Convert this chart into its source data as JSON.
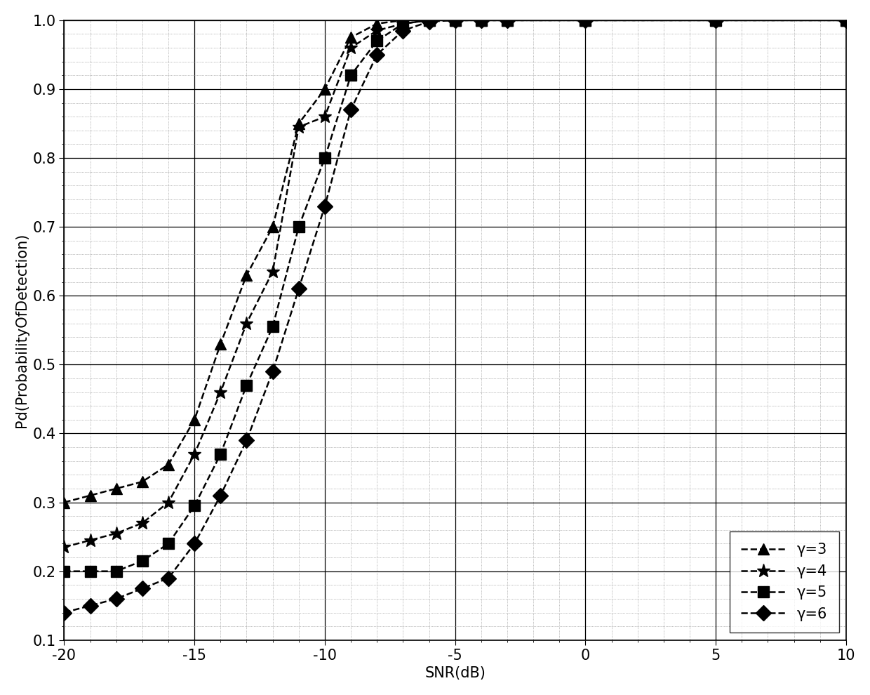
{
  "title": "",
  "xlabel": "SNR(dB)",
  "ylabel": "Pd(ProbabilityOfDetection)",
  "xlim": [
    -20,
    10
  ],
  "ylim": [
    0.1,
    1.0
  ],
  "yticks": [
    0.1,
    0.2,
    0.3,
    0.4,
    0.5,
    0.6,
    0.7,
    0.8,
    0.9,
    1.0
  ],
  "xticks": [
    -20,
    -15,
    -10,
    -5,
    0,
    5,
    10
  ],
  "series": [
    {
      "label": "γ=3",
      "marker": "^",
      "x": [
        -20,
        -19,
        -18,
        -17,
        -16,
        -15,
        -14,
        -13,
        -12,
        -11,
        -10,
        -9,
        -8,
        -7,
        -6,
        -5,
        -4,
        -3,
        0,
        5,
        10
      ],
      "y": [
        0.3,
        0.31,
        0.32,
        0.33,
        0.355,
        0.42,
        0.53,
        0.63,
        0.7,
        0.85,
        0.9,
        0.975,
        0.995,
        1.0,
        1.0,
        1.0,
        1.0,
        1.0,
        1.0,
        1.0,
        1.0
      ]
    },
    {
      "label": "γ=4",
      "marker": "*",
      "x": [
        -20,
        -19,
        -18,
        -17,
        -16,
        -15,
        -14,
        -13,
        -12,
        -11,
        -10,
        -9,
        -8,
        -7,
        -6,
        -5,
        -4,
        -3,
        0,
        5,
        10
      ],
      "y": [
        0.235,
        0.245,
        0.255,
        0.27,
        0.3,
        0.37,
        0.46,
        0.56,
        0.635,
        0.845,
        0.86,
        0.96,
        0.985,
        0.995,
        1.0,
        1.0,
        1.0,
        1.0,
        1.0,
        1.0,
        1.0
      ]
    },
    {
      "label": "γ=5",
      "marker": "s",
      "x": [
        -20,
        -19,
        -18,
        -17,
        -16,
        -15,
        -14,
        -13,
        -12,
        -11,
        -10,
        -9,
        -8,
        -7,
        -6,
        -5,
        -4,
        -3,
        0,
        5,
        10
      ],
      "y": [
        0.2,
        0.2,
        0.2,
        0.215,
        0.24,
        0.295,
        0.37,
        0.47,
        0.555,
        0.7,
        0.8,
        0.92,
        0.97,
        0.995,
        1.0,
        1.0,
        1.0,
        1.0,
        1.0,
        1.0,
        1.0
      ]
    },
    {
      "label": "γ=6",
      "marker": "D",
      "x": [
        -20,
        -19,
        -18,
        -17,
        -16,
        -15,
        -14,
        -13,
        -12,
        -11,
        -10,
        -9,
        -8,
        -7,
        -6,
        -5,
        -4,
        -3,
        0,
        5,
        10
      ],
      "y": [
        0.14,
        0.15,
        0.16,
        0.175,
        0.19,
        0.24,
        0.31,
        0.39,
        0.49,
        0.61,
        0.73,
        0.87,
        0.95,
        0.985,
        0.998,
        1.0,
        1.0,
        1.0,
        1.0,
        1.0,
        1.0
      ]
    }
  ],
  "line_color": "black",
  "line_style": "--",
  "marker_size": 11,
  "line_width": 1.8,
  "legend_loc": "lower right",
  "background_color": "#ffffff",
  "font_size": 15
}
